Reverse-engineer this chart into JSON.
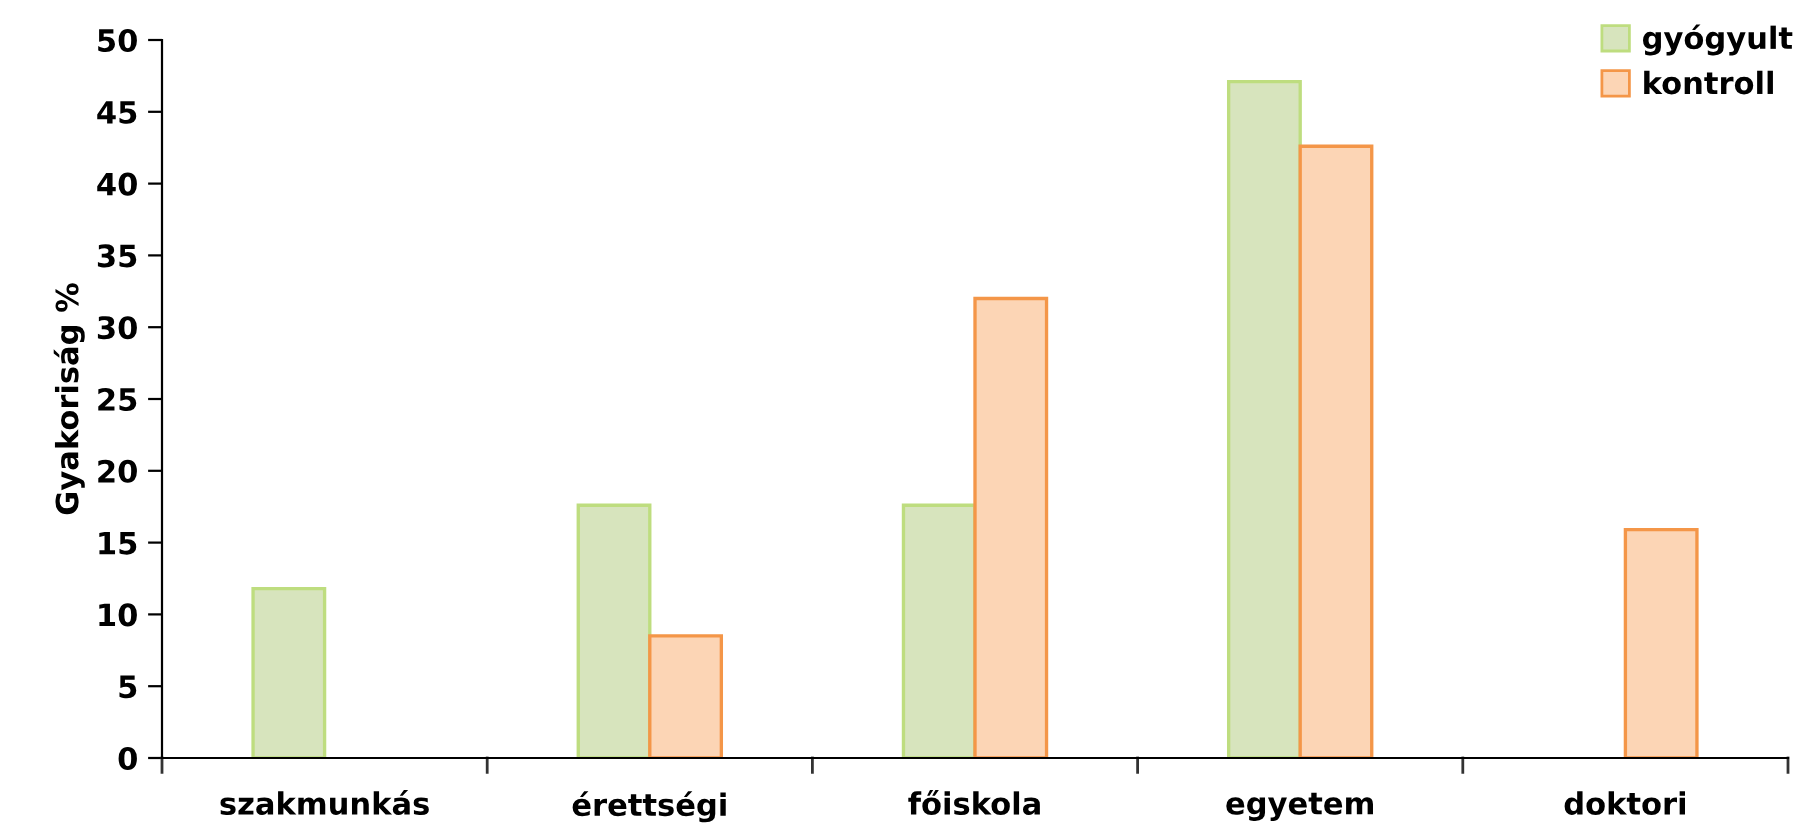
{
  "chart_data": {
    "type": "bar",
    "ylabel": "Gyakoriság %",
    "categories": [
      "szakmunkás",
      "érettségi",
      "főiskola",
      "egyetem",
      "doktori"
    ],
    "series": [
      {
        "name": "gyógyult",
        "color": "#d7e4bd",
        "values": [
          11.8,
          17.6,
          17.6,
          47.1,
          null
        ]
      },
      {
        "name": "kontroll",
        "color": "#fcd5b5",
        "values": [
          null,
          8.5,
          32,
          42.6,
          15.9
        ]
      }
    ],
    "ylim": [
      0,
      50
    ],
    "yticks": [
      0,
      5,
      10,
      15,
      20,
      25,
      30,
      35,
      40,
      45,
      50
    ],
    "grid": false,
    "legend": "top right"
  }
}
